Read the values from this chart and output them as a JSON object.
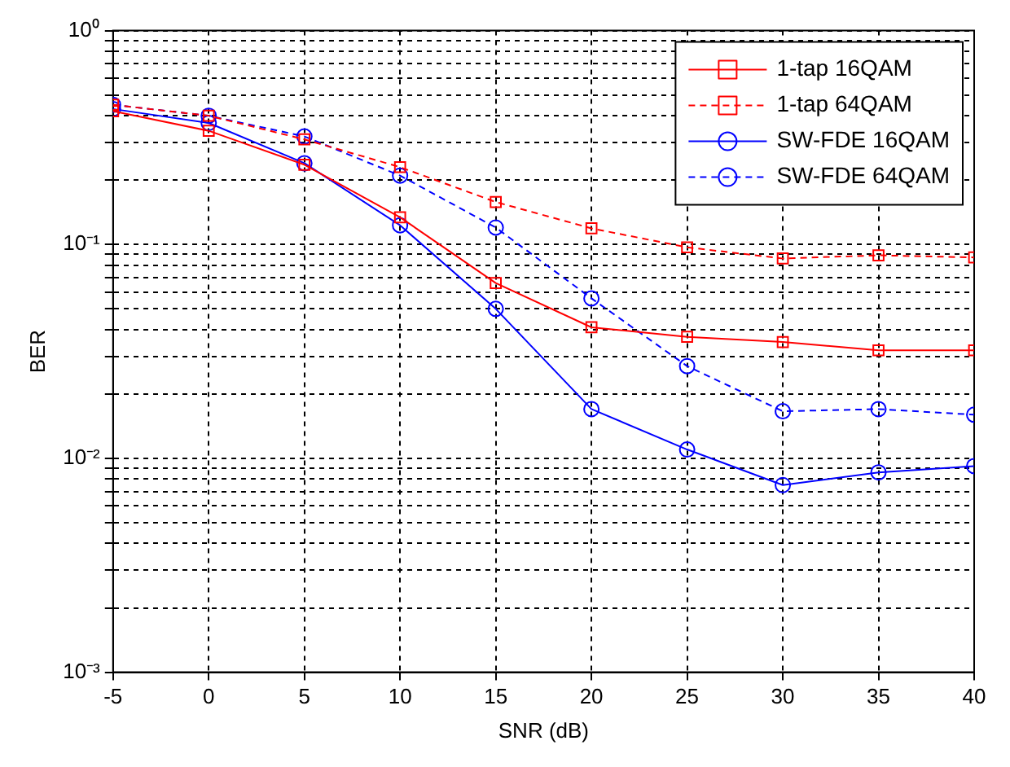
{
  "chart_data": {
    "type": "line",
    "xlabel": "SNR (dB)",
    "ylabel": "BER",
    "x": [
      -5,
      0,
      5,
      10,
      15,
      20,
      25,
      30,
      35,
      40
    ],
    "series": [
      {
        "name": "1-tap 16QAM",
        "color": "#ff0000",
        "marker": "square",
        "line_style": "solid",
        "values": [
          0.42,
          0.34,
          0.236,
          0.134,
          0.066,
          0.041,
          0.037,
          0.035,
          0.032,
          0.032
        ]
      },
      {
        "name": "1-tap 64QAM",
        "color": "#ff0000",
        "marker": "square",
        "line_style": "dashed",
        "values": [
          0.45,
          0.4,
          0.31,
          0.23,
          0.158,
          0.119,
          0.097,
          0.086,
          0.089,
          0.087
        ]
      },
      {
        "name": "SW-FDE 16QAM",
        "color": "#0000ff",
        "marker": "circle",
        "line_style": "solid",
        "values": [
          0.43,
          0.37,
          0.24,
          0.123,
          0.05,
          0.017,
          0.011,
          0.0075,
          0.0086,
          0.0092
        ]
      },
      {
        "name": "SW-FDE 64QAM",
        "color": "#0000ff",
        "marker": "circle",
        "line_style": "dashed",
        "values": [
          0.45,
          0.4,
          0.32,
          0.21,
          0.12,
          0.056,
          0.027,
          0.0166,
          0.017,
          0.016
        ]
      }
    ],
    "log": "y",
    "xlim": [
      -5,
      40
    ],
    "xticks": [
      -5,
      0,
      5,
      10,
      15,
      20,
      25,
      30,
      35,
      40
    ],
    "ylim": [
      0.001,
      1
    ],
    "yticks": [
      {
        "value": 0.001,
        "label": "10⁻³"
      },
      {
        "value": 0.002,
        "label": null
      },
      {
        "value": 0.003,
        "label": null
      },
      {
        "value": 0.004,
        "label": null
      },
      {
        "value": 0.005,
        "label": null
      },
      {
        "value": 0.006,
        "label": null
      },
      {
        "value": 0.007,
        "label": null
      },
      {
        "value": 0.008,
        "label": null
      },
      {
        "value": 0.009,
        "label": null
      },
      {
        "value": 0.01,
        "label": "10⁻²"
      },
      {
        "value": 0.02,
        "label": null
      },
      {
        "value": 0.03,
        "label": null
      },
      {
        "value": 0.04,
        "label": null
      },
      {
        "value": 0.05,
        "label": null
      },
      {
        "value": 0.06,
        "label": null
      },
      {
        "value": 0.07,
        "label": null
      },
      {
        "value": 0.08,
        "label": null
      },
      {
        "value": 0.09,
        "label": null
      },
      {
        "value": 0.1,
        "label": "10⁻¹"
      },
      {
        "value": 0.2,
        "label": null
      },
      {
        "value": 0.3,
        "label": null
      },
      {
        "value": 0.4,
        "label": null
      },
      {
        "value": 0.5,
        "label": null
      },
      {
        "value": 0.6,
        "label": null
      },
      {
        "value": 0.7,
        "label": null
      },
      {
        "value": 0.8,
        "label": null
      },
      {
        "value": 0.9,
        "label": null
      },
      {
        "value": 1,
        "label": "10⁰"
      }
    ],
    "grid": true,
    "legend": "top right"
  }
}
